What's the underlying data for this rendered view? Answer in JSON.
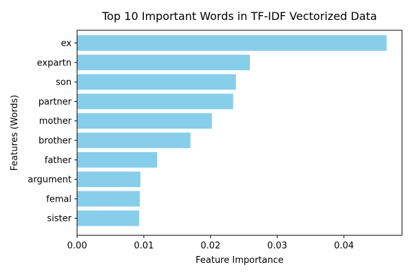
{
  "chart_data": {
    "type": "bar",
    "orientation": "horizontal",
    "title": "Top 10 Important Words in TF-IDF Vectorized Data",
    "xlabel": "Feature Importance",
    "ylabel": "Features (Words)",
    "categories": [
      "ex",
      "expartn",
      "son",
      "partner",
      "mother",
      "brother",
      "father",
      "argument",
      "femal",
      "sister"
    ],
    "values": [
      0.0464,
      0.0259,
      0.0238,
      0.0234,
      0.0202,
      0.017,
      0.012,
      0.0095,
      0.0094,
      0.0093
    ],
    "xlim": [
      0,
      0.0487
    ],
    "xticks": [
      0.0,
      0.01,
      0.02,
      0.03,
      0.04
    ],
    "xtick_labels": [
      "0.00",
      "0.01",
      "0.02",
      "0.03",
      "0.04"
    ],
    "bar_color": "#87ceeb",
    "grid": false,
    "legend": "none"
  }
}
